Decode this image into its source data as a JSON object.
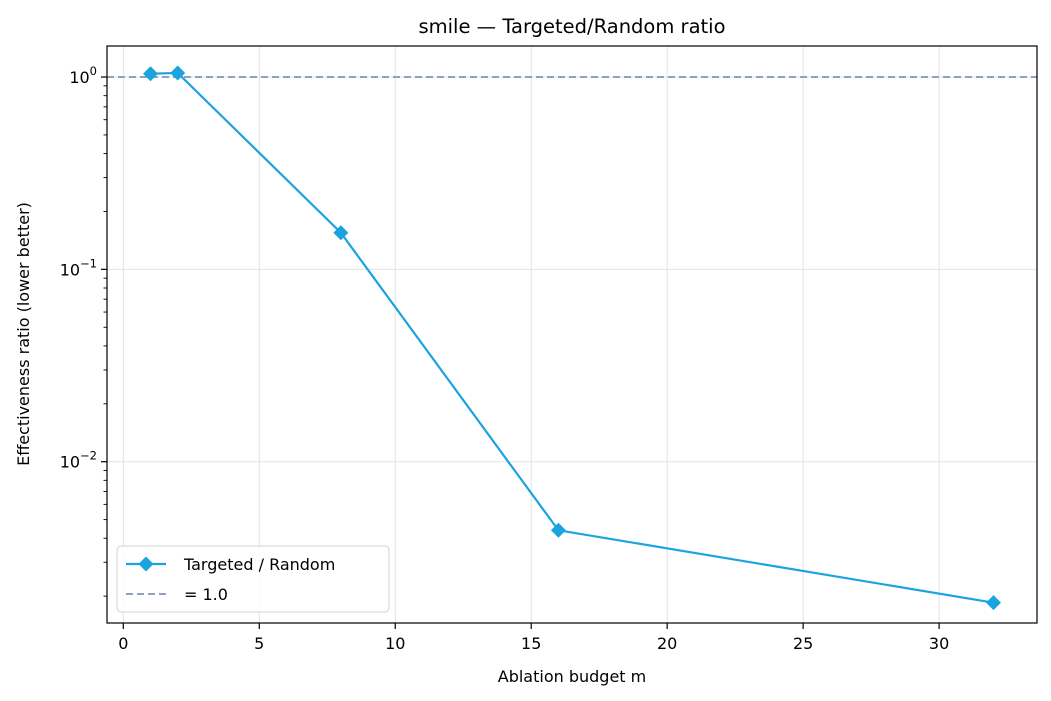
{
  "chart_data": {
    "type": "line",
    "title": "smile — Targeted/Random ratio",
    "xlabel": "Ablation budget m",
    "ylabel": "Effectiveness ratio (lower better)",
    "xlim": [
      -0.6,
      33.6
    ],
    "ylim": [
      0.00145,
      1.45
    ],
    "yscale": "log",
    "grid": true,
    "legend_position": "lower-left",
    "x_ticks": [
      0,
      5,
      10,
      15,
      20,
      25,
      30
    ],
    "x_tick_labels": [
      "0",
      "5",
      "10",
      "15",
      "20",
      "25",
      "30"
    ],
    "y_major_ticks": [
      1,
      0.1,
      0.01
    ],
    "y_tick_labels": [
      {
        "base": "10",
        "exp": "0"
      },
      {
        "base": "10",
        "exp": "−1"
      },
      {
        "base": "10",
        "exp": "−2"
      }
    ],
    "series": [
      {
        "name": "Targeted / Random",
        "color": "#1ba3e0",
        "marker": "diamond",
        "x": [
          1,
          2,
          8,
          16,
          32
        ],
        "y": [
          1.04,
          1.05,
          0.155,
          0.0044,
          0.00185
        ]
      }
    ],
    "reference_line": {
      "name": "= 1.0",
      "y": 1.0,
      "style": "dashed",
      "color": "#8ea2c0"
    }
  }
}
